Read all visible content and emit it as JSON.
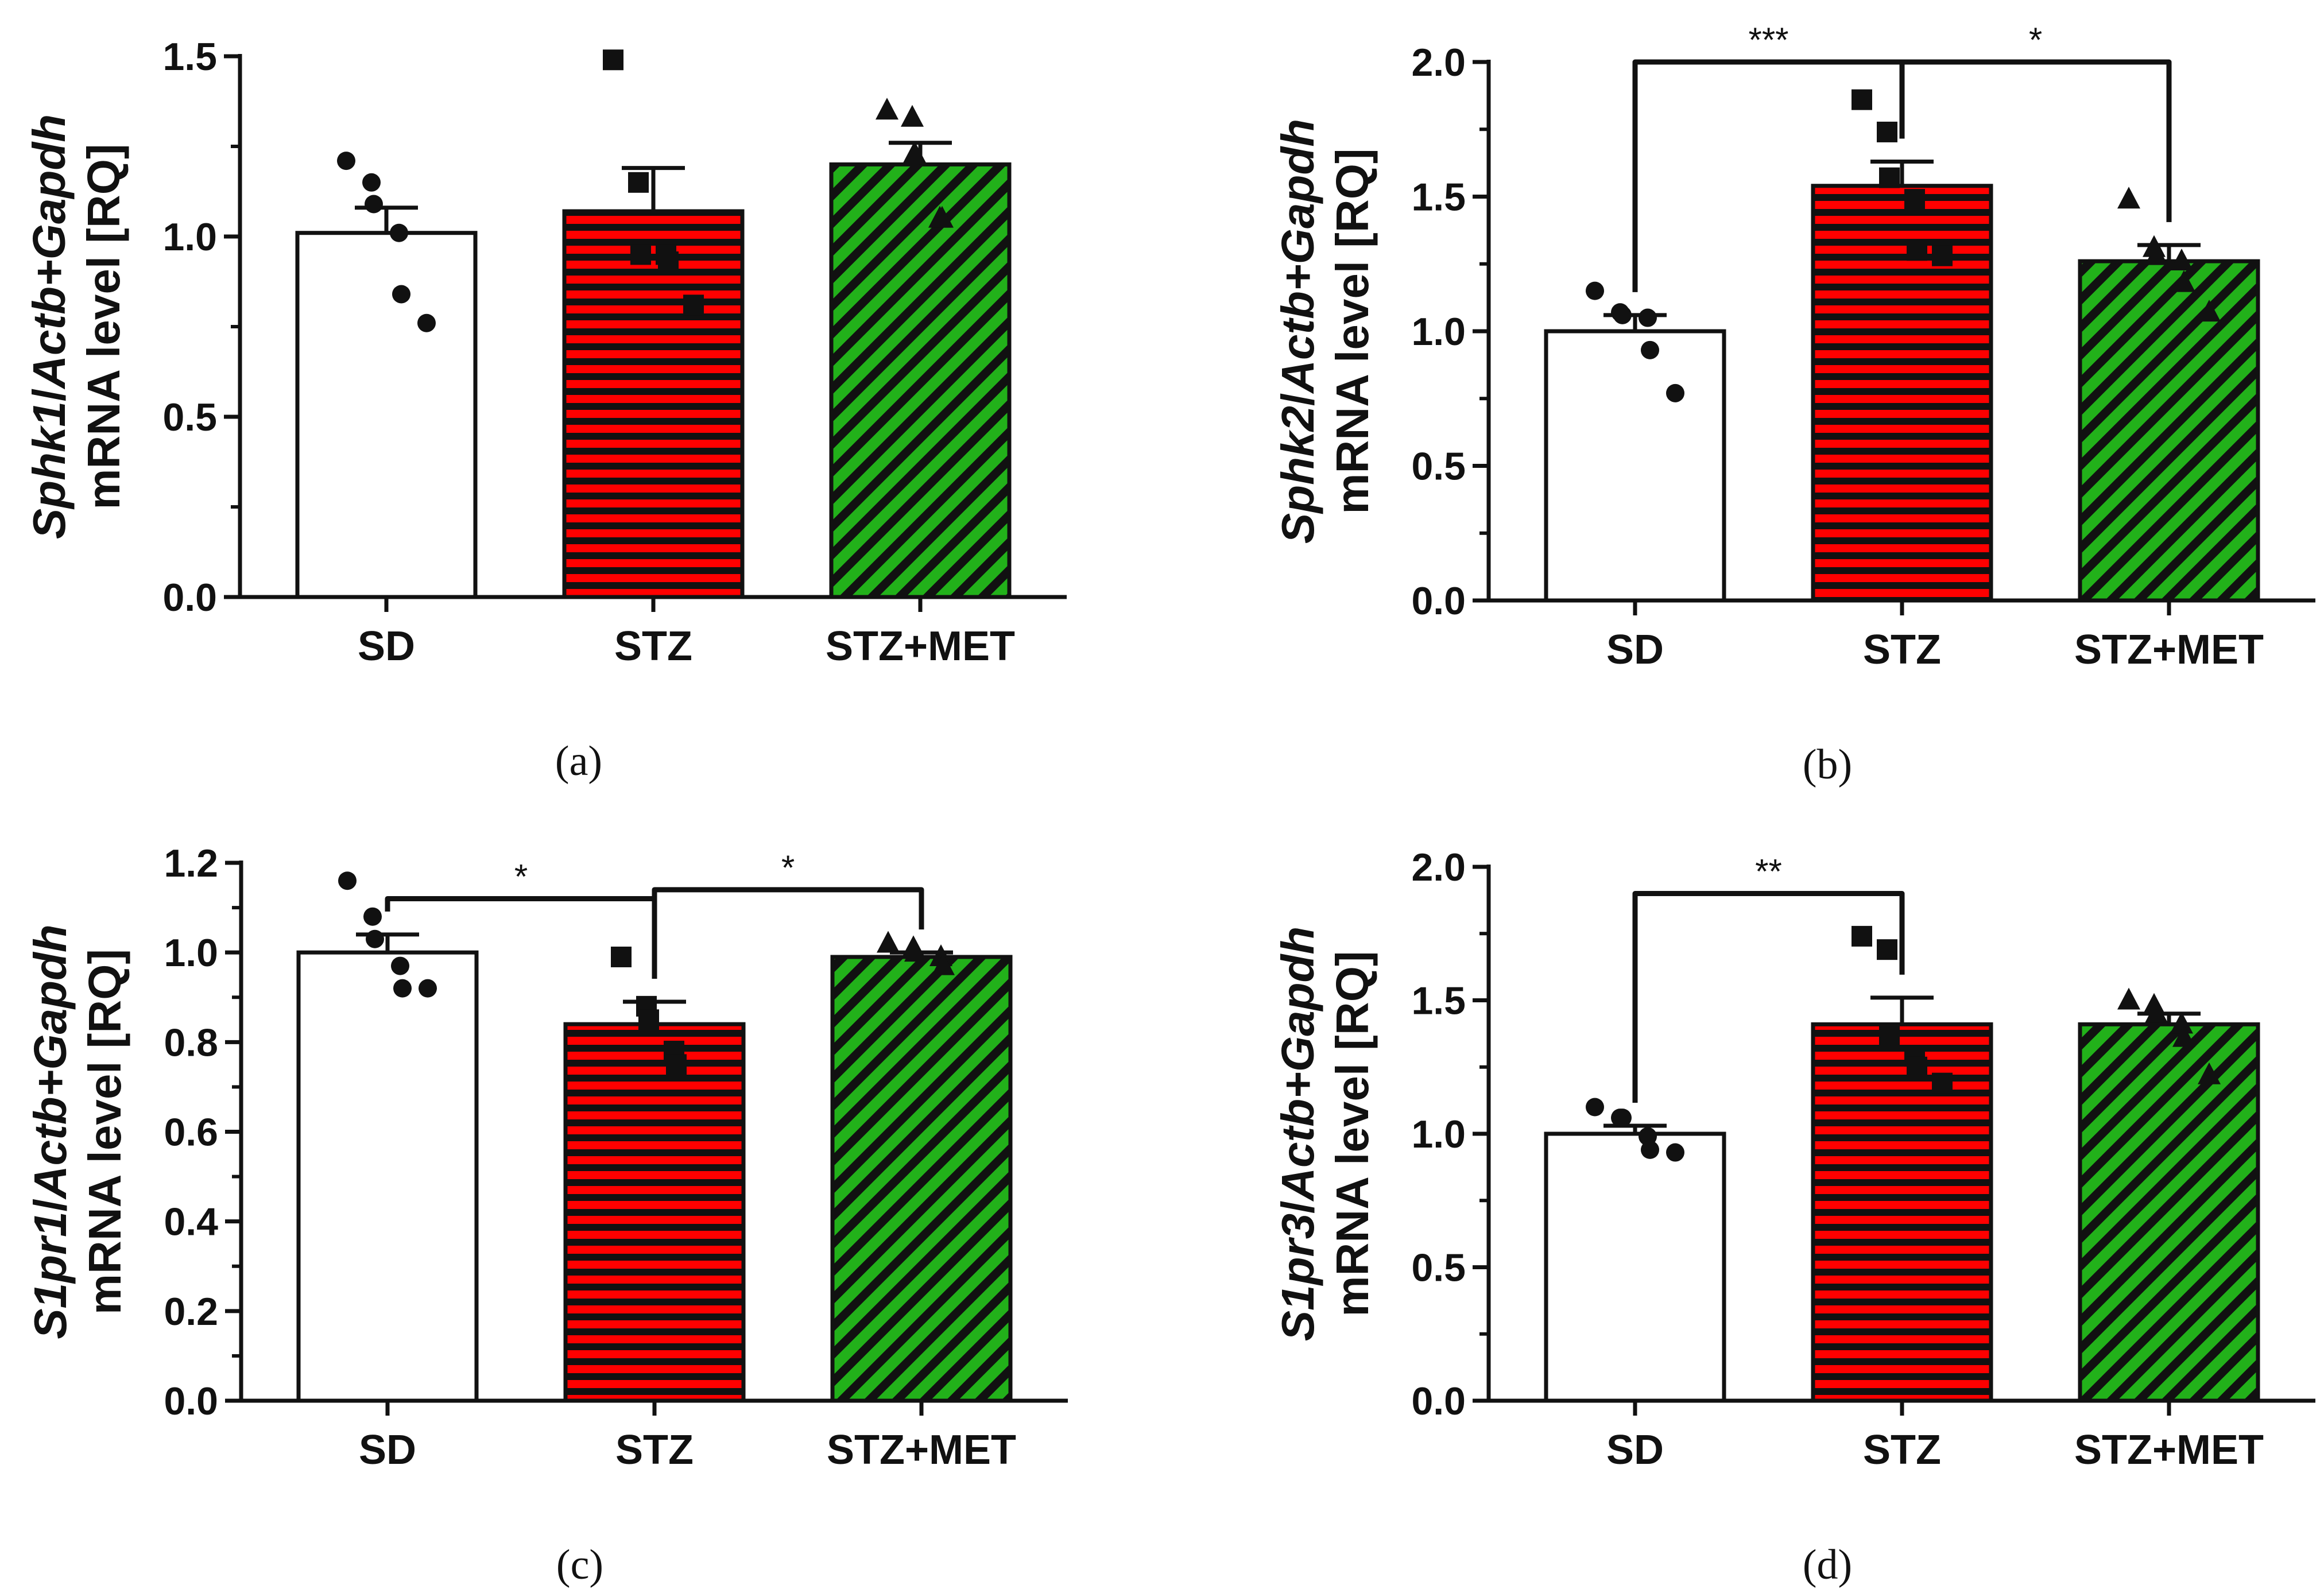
{
  "colors": {
    "sd_fill": "#ffffff",
    "stz_fill": "#ff0000",
    "stz_stripe": "#111111",
    "met_fill": "#22b11a",
    "met_stripe": "#111111",
    "axis": "#111111"
  },
  "chart_data": [
    {
      "type": "bar",
      "panel_label": "(a)",
      "ylabel_gene": "Sphk1",
      "ylabel_sep": "/",
      "ylabel_ref": "Actb+Gapdh",
      "ylabel_line2": "mRNA level [RQ]",
      "categories": [
        "SD",
        "STZ",
        "STZ+MET"
      ],
      "values": [
        1.01,
        1.07,
        1.2
      ],
      "sem": [
        0.07,
        0.12,
        0.06
      ],
      "points": [
        [
          1.21,
          1.15,
          1.09,
          1.01,
          0.84,
          0.76
        ],
        [
          1.49,
          1.15,
          0.95,
          0.95,
          0.93,
          0.81
        ],
        [
          1.35,
          1.33,
          1.23,
          1.05,
          1.05
        ]
      ],
      "markers": [
        "circle",
        "square",
        "triangle"
      ],
      "ylim": [
        0,
        1.5
      ],
      "yticks": [
        "0.0",
        "0.5",
        "1.0",
        "1.5"
      ],
      "significance": []
    },
    {
      "type": "bar",
      "panel_label": "(b)",
      "ylabel_gene": "Sphk2",
      "ylabel_sep": "/",
      "ylabel_ref": "Actb+Gapdh",
      "ylabel_line2": "mRNA level [RQ]",
      "categories": [
        "SD",
        "STZ",
        "STZ+MET"
      ],
      "values": [
        1.0,
        1.54,
        1.26
      ],
      "sem": [
        0.06,
        0.09,
        0.06
      ],
      "points": [
        [
          1.15,
          1.07,
          1.06,
          1.05,
          0.93,
          0.77
        ],
        [
          1.86,
          1.74,
          1.57,
          1.49,
          1.3,
          1.28
        ],
        [
          1.49,
          1.31,
          1.28,
          1.26,
          1.18,
          1.07
        ]
      ],
      "markers": [
        "circle",
        "square",
        "triangle"
      ],
      "ylim": [
        0,
        2.0
      ],
      "yticks": [
        "0.0",
        "0.5",
        "1.0",
        "1.5",
        "2.0"
      ],
      "significance": [
        {
          "from": 0,
          "to": 1,
          "y": 2.0,
          "label": "***"
        },
        {
          "from": 1,
          "to": 2,
          "y": 2.0,
          "label": "*"
        }
      ]
    },
    {
      "type": "bar",
      "panel_label": "(c)",
      "ylabel_gene": "S1pr1",
      "ylabel_sep": "/",
      "ylabel_ref": "Actb+Gapdh",
      "ylabel_line2": "mRNA level [RQ]",
      "categories": [
        "SD",
        "STZ",
        "STZ+MET"
      ],
      "values": [
        1.0,
        0.84,
        0.99
      ],
      "sem": [
        0.04,
        0.05,
        0.01
      ],
      "points": [
        [
          1.16,
          1.08,
          1.03,
          0.97,
          0.92,
          0.92
        ],
        [
          0.99,
          0.88,
          0.85,
          0.78,
          0.75
        ],
        [
          1.02,
          1.01,
          1.0,
          0.99,
          0.97
        ]
      ],
      "markers": [
        "circle",
        "square",
        "triangle"
      ],
      "ylim": [
        0,
        1.2
      ],
      "yticks": [
        "0.0",
        "0.2",
        "0.4",
        "0.6",
        "0.8",
        "1.0",
        "1.2"
      ],
      "significance": [
        {
          "from": 0,
          "to": 1,
          "y": 1.12,
          "label": "*"
        },
        {
          "from": 1,
          "to": 2,
          "y": 1.14,
          "label": "*"
        }
      ]
    },
    {
      "type": "bar",
      "panel_label": "(d)",
      "ylabel_gene": "S1pr3",
      "ylabel_sep": "/",
      "ylabel_ref": "Actb+Gapdh",
      "ylabel_line2": "mRNA level [RQ]",
      "categories": [
        "SD",
        "STZ",
        "STZ+MET"
      ],
      "values": [
        1.0,
        1.41,
        1.41
      ],
      "sem": [
        0.03,
        0.1,
        0.04
      ],
      "points": [
        [
          1.1,
          1.06,
          1.06,
          0.99,
          0.94,
          0.93
        ],
        [
          1.74,
          1.69,
          1.37,
          1.29,
          1.25,
          1.19
        ],
        [
          1.5,
          1.48,
          1.45,
          1.41,
          1.36,
          1.22
        ]
      ],
      "markers": [
        "circle",
        "square",
        "triangle"
      ],
      "ylim": [
        0,
        2.0
      ],
      "yticks": [
        "0.0",
        "0.5",
        "1.0",
        "1.5",
        "2.0"
      ],
      "significance": [
        {
          "from": 0,
          "to": 1,
          "y": 1.9,
          "label": "**"
        }
      ]
    }
  ]
}
